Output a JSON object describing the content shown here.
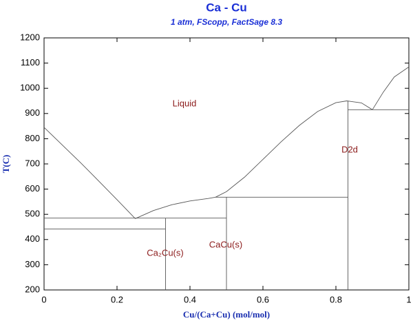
{
  "chart_data": {
    "type": "line",
    "title": "Ca - Cu",
    "subtitle": "1 atm, FScopp, FactSage 8.3",
    "x_label": "Cu/(Ca+Cu) (mol/mol)",
    "y_label": "T(C)",
    "xlim": [
      0,
      1
    ],
    "ylim": [
      200,
      1200
    ],
    "xticks": [
      0,
      0.2,
      0.4,
      0.6,
      0.8,
      1
    ],
    "yticks": [
      200,
      300,
      400,
      500,
      600,
      700,
      800,
      900,
      1000,
      1100,
      1200
    ],
    "grid": false,
    "series": [
      {
        "color": "#555555",
        "x": [
          0,
          0.05,
          0.1,
          0.15,
          0.2,
          0.25
        ],
        "values": [
          845,
          775,
          705,
          632,
          558,
          483
        ]
      },
      {
        "color": "#555555",
        "x": [
          0.25,
          0.3,
          0.35,
          0.4,
          0.45,
          0.47
        ],
        "values": [
          483,
          515,
          538,
          553,
          563,
          568
        ]
      },
      {
        "color": "#555555",
        "x": [
          0.47,
          0.5,
          0.55,
          0.6,
          0.65,
          0.7,
          0.75,
          0.8,
          0.83,
          0.87,
          0.9
        ],
        "values": [
          568,
          590,
          648,
          718,
          788,
          853,
          908,
          943,
          950,
          942,
          915
        ]
      },
      {
        "color": "#555555",
        "x": [
          0.9,
          0.93,
          0.96,
          1
        ],
        "values": [
          915,
          985,
          1045,
          1085
        ]
      },
      {
        "color": "#555555",
        "x": [
          0,
          0.5
        ],
        "values": [
          485,
          485
        ]
      },
      {
        "color": "#555555",
        "x": [
          0,
          0.333
        ],
        "values": [
          442,
          442
        ]
      },
      {
        "color": "#555555",
        "x": [
          0.47,
          0.833
        ],
        "values": [
          568,
          568
        ]
      },
      {
        "color": "#555555",
        "x": [
          0.833,
          1
        ],
        "values": [
          915,
          915
        ]
      },
      {
        "color": "#555555",
        "x": [
          0.333,
          0.333
        ],
        "values": [
          200,
          485
        ]
      },
      {
        "color": "#555555",
        "x": [
          0.5,
          0.5
        ],
        "values": [
          200,
          568
        ]
      },
      {
        "color": "#555555",
        "x": [
          0.833,
          0.833
        ],
        "values": [
          200,
          950
        ]
      }
    ],
    "annotations": [
      "Liquid",
      "Ca₂Cu(s)",
      "CaCu(s)",
      "D2d"
    ]
  }
}
